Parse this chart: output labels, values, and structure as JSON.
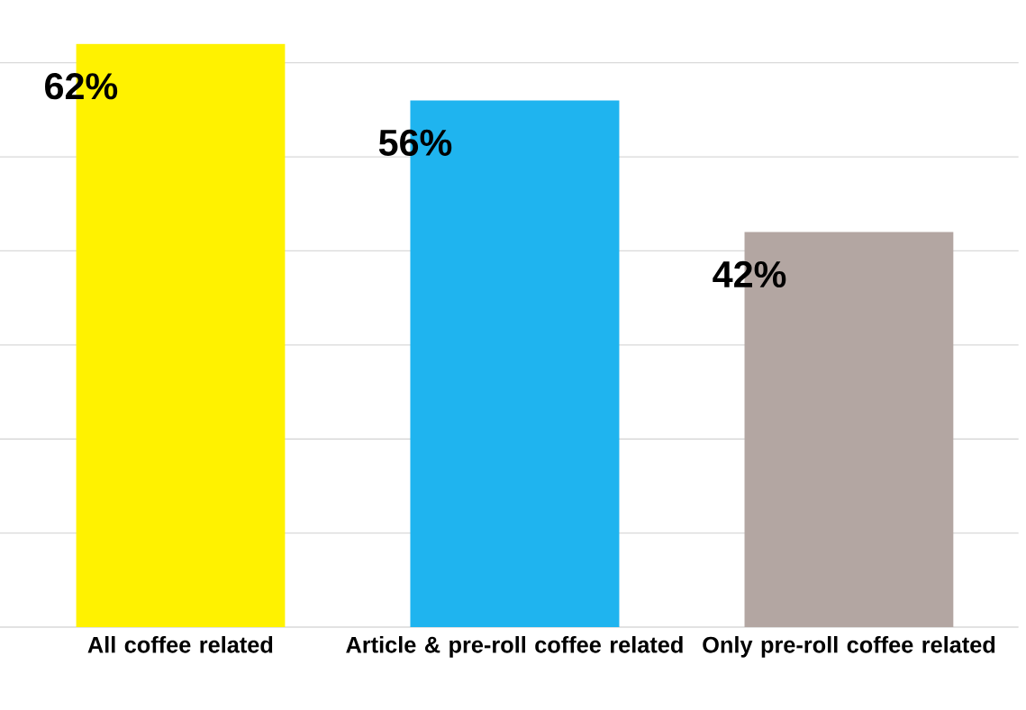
{
  "chart_data": {
    "type": "bar",
    "categories": [
      "All coffee related",
      "Article & pre-roll coffee related",
      "Only pre-roll coffee related"
    ],
    "values": [
      62,
      56,
      42
    ],
    "colors": [
      "#fff200",
      "#1fb4ef",
      "#b3a6a2"
    ],
    "value_labels": [
      "62%",
      "56%",
      "42%"
    ],
    "tick_labels": "x",
    "grid": "y"
  }
}
